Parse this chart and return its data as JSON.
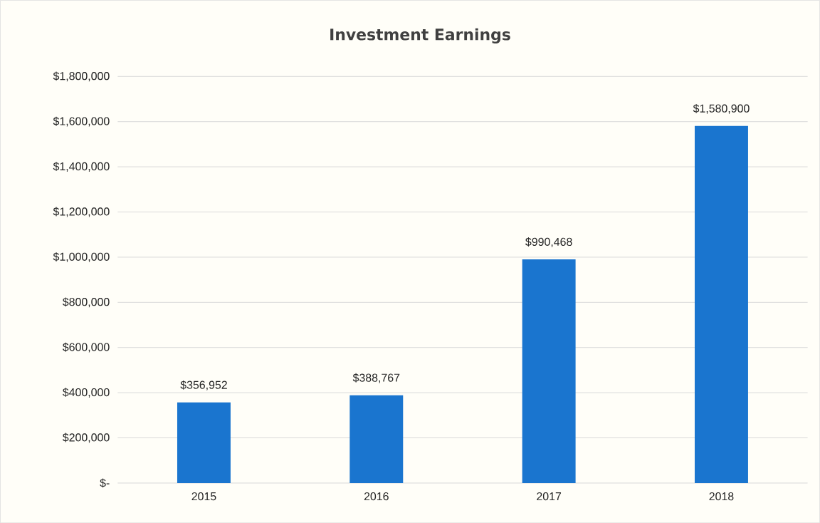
{
  "chart_data": {
    "type": "bar",
    "title": "Investment Earnings",
    "categories": [
      "2015",
      "2016",
      "2017",
      "2018"
    ],
    "values": [
      356952,
      388767,
      990468,
      1580900
    ],
    "value_labels": [
      "$356,952",
      "$388,767",
      "$990,468",
      "$1,580,900"
    ],
    "color": "#1a75cf",
    "ylim": [
      0,
      1800000
    ],
    "yticks": [
      {
        "value": 0,
        "label": "$-"
      },
      {
        "value": 200000,
        "label": "$200,000"
      },
      {
        "value": 400000,
        "label": "$400,000"
      },
      {
        "value": 600000,
        "label": "$600,000"
      },
      {
        "value": 800000,
        "label": "$800,000"
      },
      {
        "value": 1000000,
        "label": "$1,000,000"
      },
      {
        "value": 1200000,
        "label": "$1,200,000"
      },
      {
        "value": 1400000,
        "label": "$1,400,000"
      },
      {
        "value": 1600000,
        "label": "$1,600,000"
      },
      {
        "value": 1800000,
        "label": "$1,800,000"
      }
    ],
    "grid": "y"
  }
}
